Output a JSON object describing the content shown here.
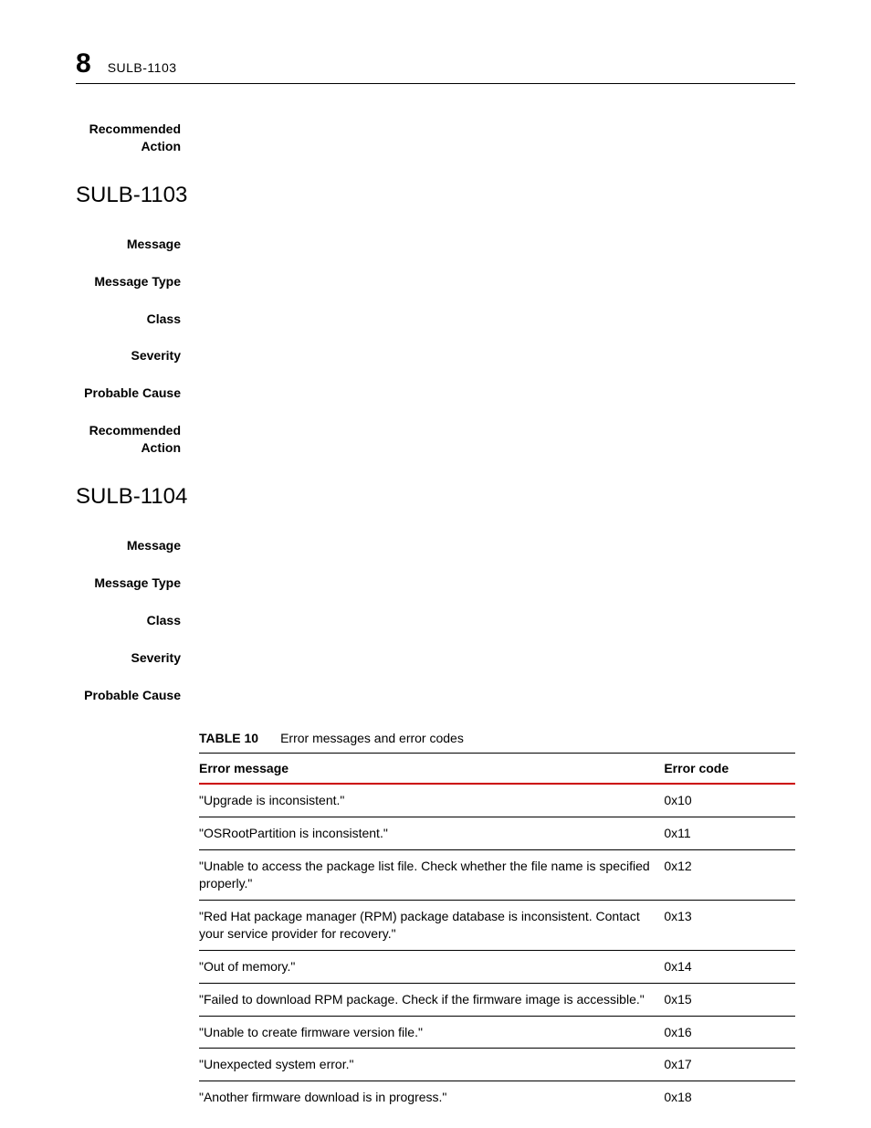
{
  "header": {
    "chapter_number": "8",
    "running_title": "SULB-1103"
  },
  "sections": [
    {
      "type": "block",
      "items": [
        {
          "label": "Recommended\nAction",
          "value": ""
        }
      ]
    },
    {
      "type": "heading",
      "text": "SULB-1103"
    },
    {
      "type": "block",
      "items": [
        {
          "label": "Message",
          "value": ""
        },
        {
          "label": "Message Type",
          "value": ""
        },
        {
          "label": "Class",
          "value": ""
        },
        {
          "label": "Severity",
          "value": ""
        },
        {
          "label": "Probable Cause",
          "value": ""
        },
        {
          "label": "Recommended\nAction",
          "value": ""
        }
      ]
    },
    {
      "type": "heading",
      "text": "SULB-1104"
    },
    {
      "type": "block",
      "items": [
        {
          "label": "Message",
          "value": ""
        },
        {
          "label": "Message Type",
          "value": ""
        },
        {
          "label": "Class",
          "value": ""
        },
        {
          "label": "Severity",
          "value": ""
        },
        {
          "label": "Probable Cause",
          "value": ""
        }
      ]
    }
  ],
  "table": {
    "label": "TABLE 10",
    "caption": "Error messages and error codes",
    "columns": [
      "Error message",
      "Error code"
    ],
    "column_widths": [
      "78%",
      "22%"
    ],
    "header_rule_color": "#cc0000",
    "row_rule_color": "#000000",
    "rows": [
      [
        "\"Upgrade is inconsistent.\"",
        "0x10"
      ],
      [
        "\"OSRootPartition is inconsistent.\"",
        "0x11"
      ],
      [
        "\"Unable to access the package list file. Check whether the file name is specified properly.\"",
        "0x12"
      ],
      [
        "\"Red Hat package manager (RPM) package database is inconsistent. Contact your service provider for recovery.\"",
        "0x13"
      ],
      [
        "\"Out of memory.\"",
        "0x14"
      ],
      [
        "\"Failed to download RPM package. Check if the firmware image is accessible.\"",
        "0x15"
      ],
      [
        "\"Unable to create firmware version file.\"",
        "0x16"
      ],
      [
        "\"Unexpected system error.\"",
        "0x17"
      ],
      [
        "\"Another firmware download is in progress.\"",
        "0x18"
      ]
    ]
  },
  "colors": {
    "text": "#000000",
    "background": "#ffffff",
    "accent_rule": "#cc0000",
    "rule": "#000000"
  },
  "typography": {
    "body_fontsize_pt": 10.5,
    "heading_fontsize_pt": 18,
    "chapter_number_fontsize_pt": 22,
    "font_family": "Arial, Helvetica, sans-serif"
  }
}
